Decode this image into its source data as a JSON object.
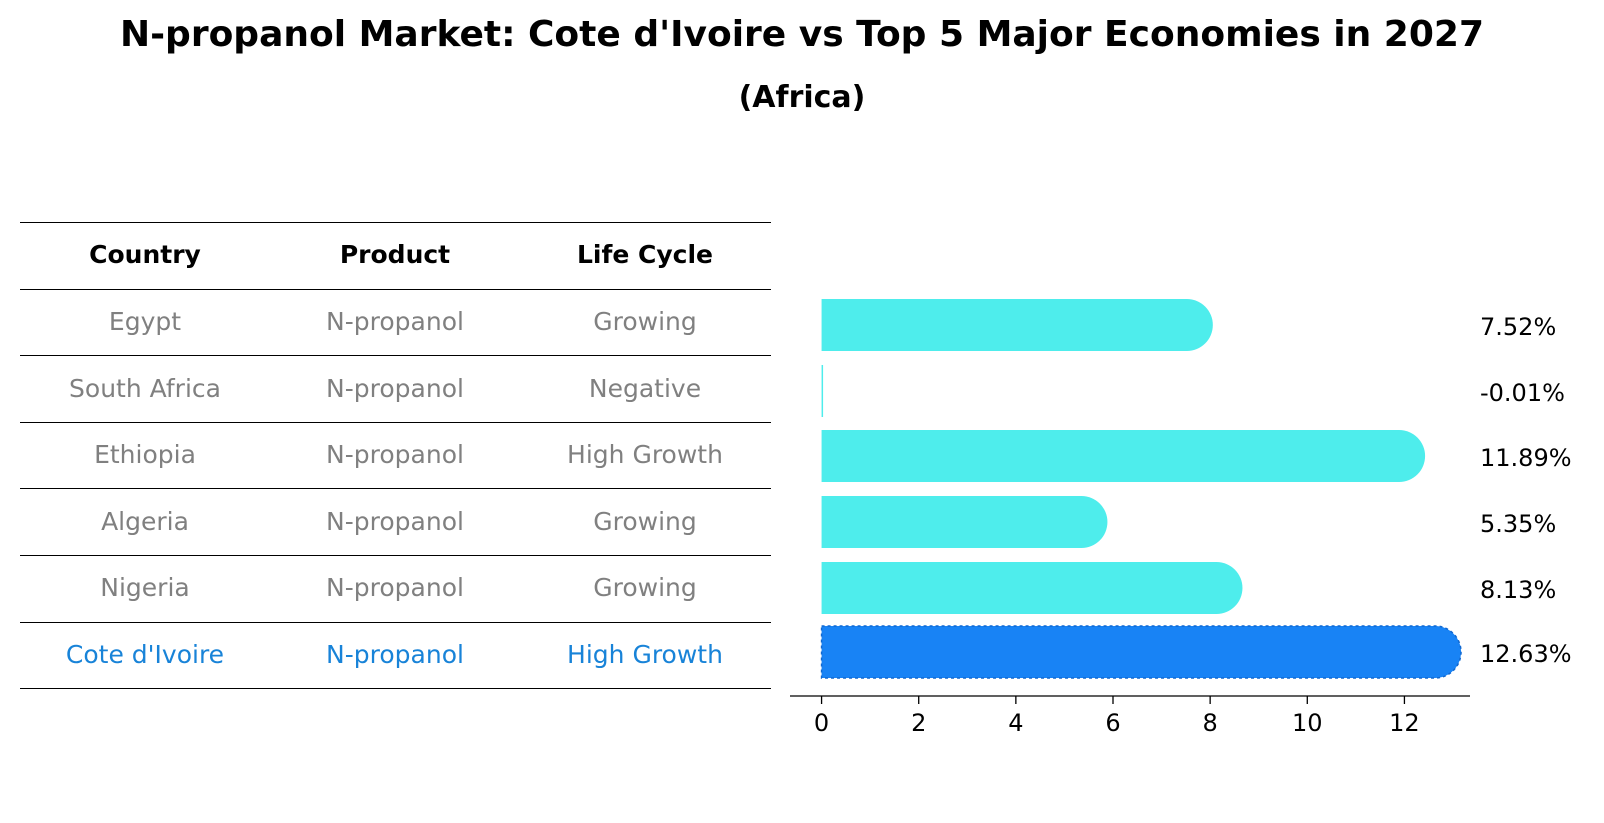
{
  "title": "N-propanol Market: Cote d'Ivoire vs Top 5 Major Economies in 2027",
  "subtitle": "(Africa)",
  "table": {
    "headers": [
      "Country",
      "Product",
      "Life Cycle"
    ],
    "rows": [
      {
        "country": "Egypt",
        "product": "N-propanol",
        "life_cycle": "Growing",
        "highlight": false
      },
      {
        "country": "South Africa",
        "product": "N-propanol",
        "life_cycle": "Negative",
        "highlight": false
      },
      {
        "country": "Ethiopia",
        "product": "N-propanol",
        "life_cycle": "High Growth",
        "highlight": false
      },
      {
        "country": "Algeria",
        "product": "N-propanol",
        "life_cycle": "Growing",
        "highlight": false
      },
      {
        "country": "Nigeria",
        "product": "N-propanol",
        "life_cycle": "Growing",
        "highlight": false
      },
      {
        "country": "Cote d'Ivoire",
        "product": "N-propanol",
        "life_cycle": "High Growth",
        "highlight": true
      }
    ]
  },
  "colors": {
    "bar": "#4EEDEC",
    "highlight_bar": "#1883F5",
    "highlight_text": "#1883D8",
    "row_text": "#808080"
  },
  "chart_data": {
    "type": "bar",
    "orientation": "horizontal",
    "categories": [
      "Egypt",
      "South Africa",
      "Ethiopia",
      "Algeria",
      "Nigeria",
      "Cote d'Ivoire"
    ],
    "values": [
      7.52,
      -0.01,
      11.89,
      5.35,
      8.13,
      12.63
    ],
    "value_labels": [
      "7.52%",
      "-0.01%",
      "11.89%",
      "5.35%",
      "8.13%",
      "12.63%"
    ],
    "highlight_category": "Cote d'Ivoire",
    "xlim": [
      -0.65,
      13.35
    ],
    "xticks": [
      0,
      2,
      4,
      6,
      8,
      10,
      12
    ],
    "xlabel": "",
    "ylabel": "",
    "grid": false
  }
}
